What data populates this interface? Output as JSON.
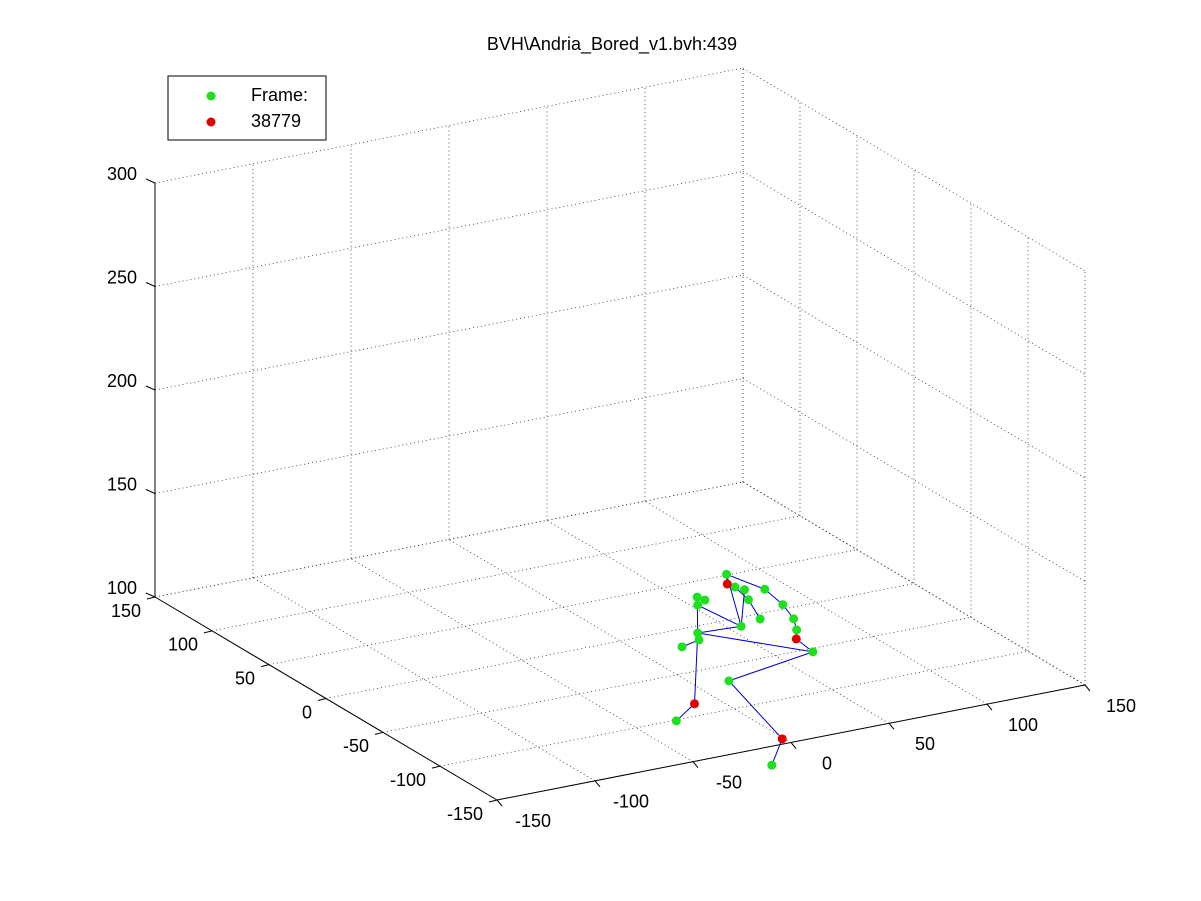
{
  "chart_data": {
    "type": "scatter3d",
    "title": "BVH\\Andria_Bored_v1.bvh:439",
    "xlim": [
      -150,
      150
    ],
    "ylim": [
      -150,
      150
    ],
    "zlim": [
      100,
      300
    ],
    "xticks": [
      -150,
      -100,
      -50,
      0,
      50,
      100,
      150
    ],
    "yticks": [
      -150,
      -100,
      -50,
      0,
      50,
      100,
      150
    ],
    "zticks": [
      100,
      150,
      200,
      250,
      300
    ],
    "grid": true,
    "legend": "northwest",
    "series": [
      {
        "name": "Frame:",
        "color": "#1ee01e",
        "x": [
          84,
          79,
          81,
          89,
          86,
          68,
          81,
          67,
          16,
          -22,
          -30,
          56,
          35,
          53,
          58,
          59,
          31,
          20,
          76,
          75
        ],
        "y": [
          51,
          35,
          30,
          26,
          5,
          -6,
          -13,
          -54,
          -68,
          -171,
          -101,
          -10,
          -8,
          23,
          32,
          27,
          -16,
          -20,
          18,
          -26
        ],
        "z": [
          100,
          100,
          100,
          100,
          100,
          100,
          100,
          100,
          100,
          100,
          100,
          100,
          100,
          100,
          100,
          100,
          100,
          100,
          100,
          100
        ]
      },
      {
        "name": "38779",
        "color": "#e00000",
        "x": [
          78,
          69,
          -12,
          -1
        ],
        "y": [
          40,
          -36,
          -86,
          -144
        ],
        "z": [
          100,
          100,
          100,
          100
        ]
      }
    ]
  }
}
